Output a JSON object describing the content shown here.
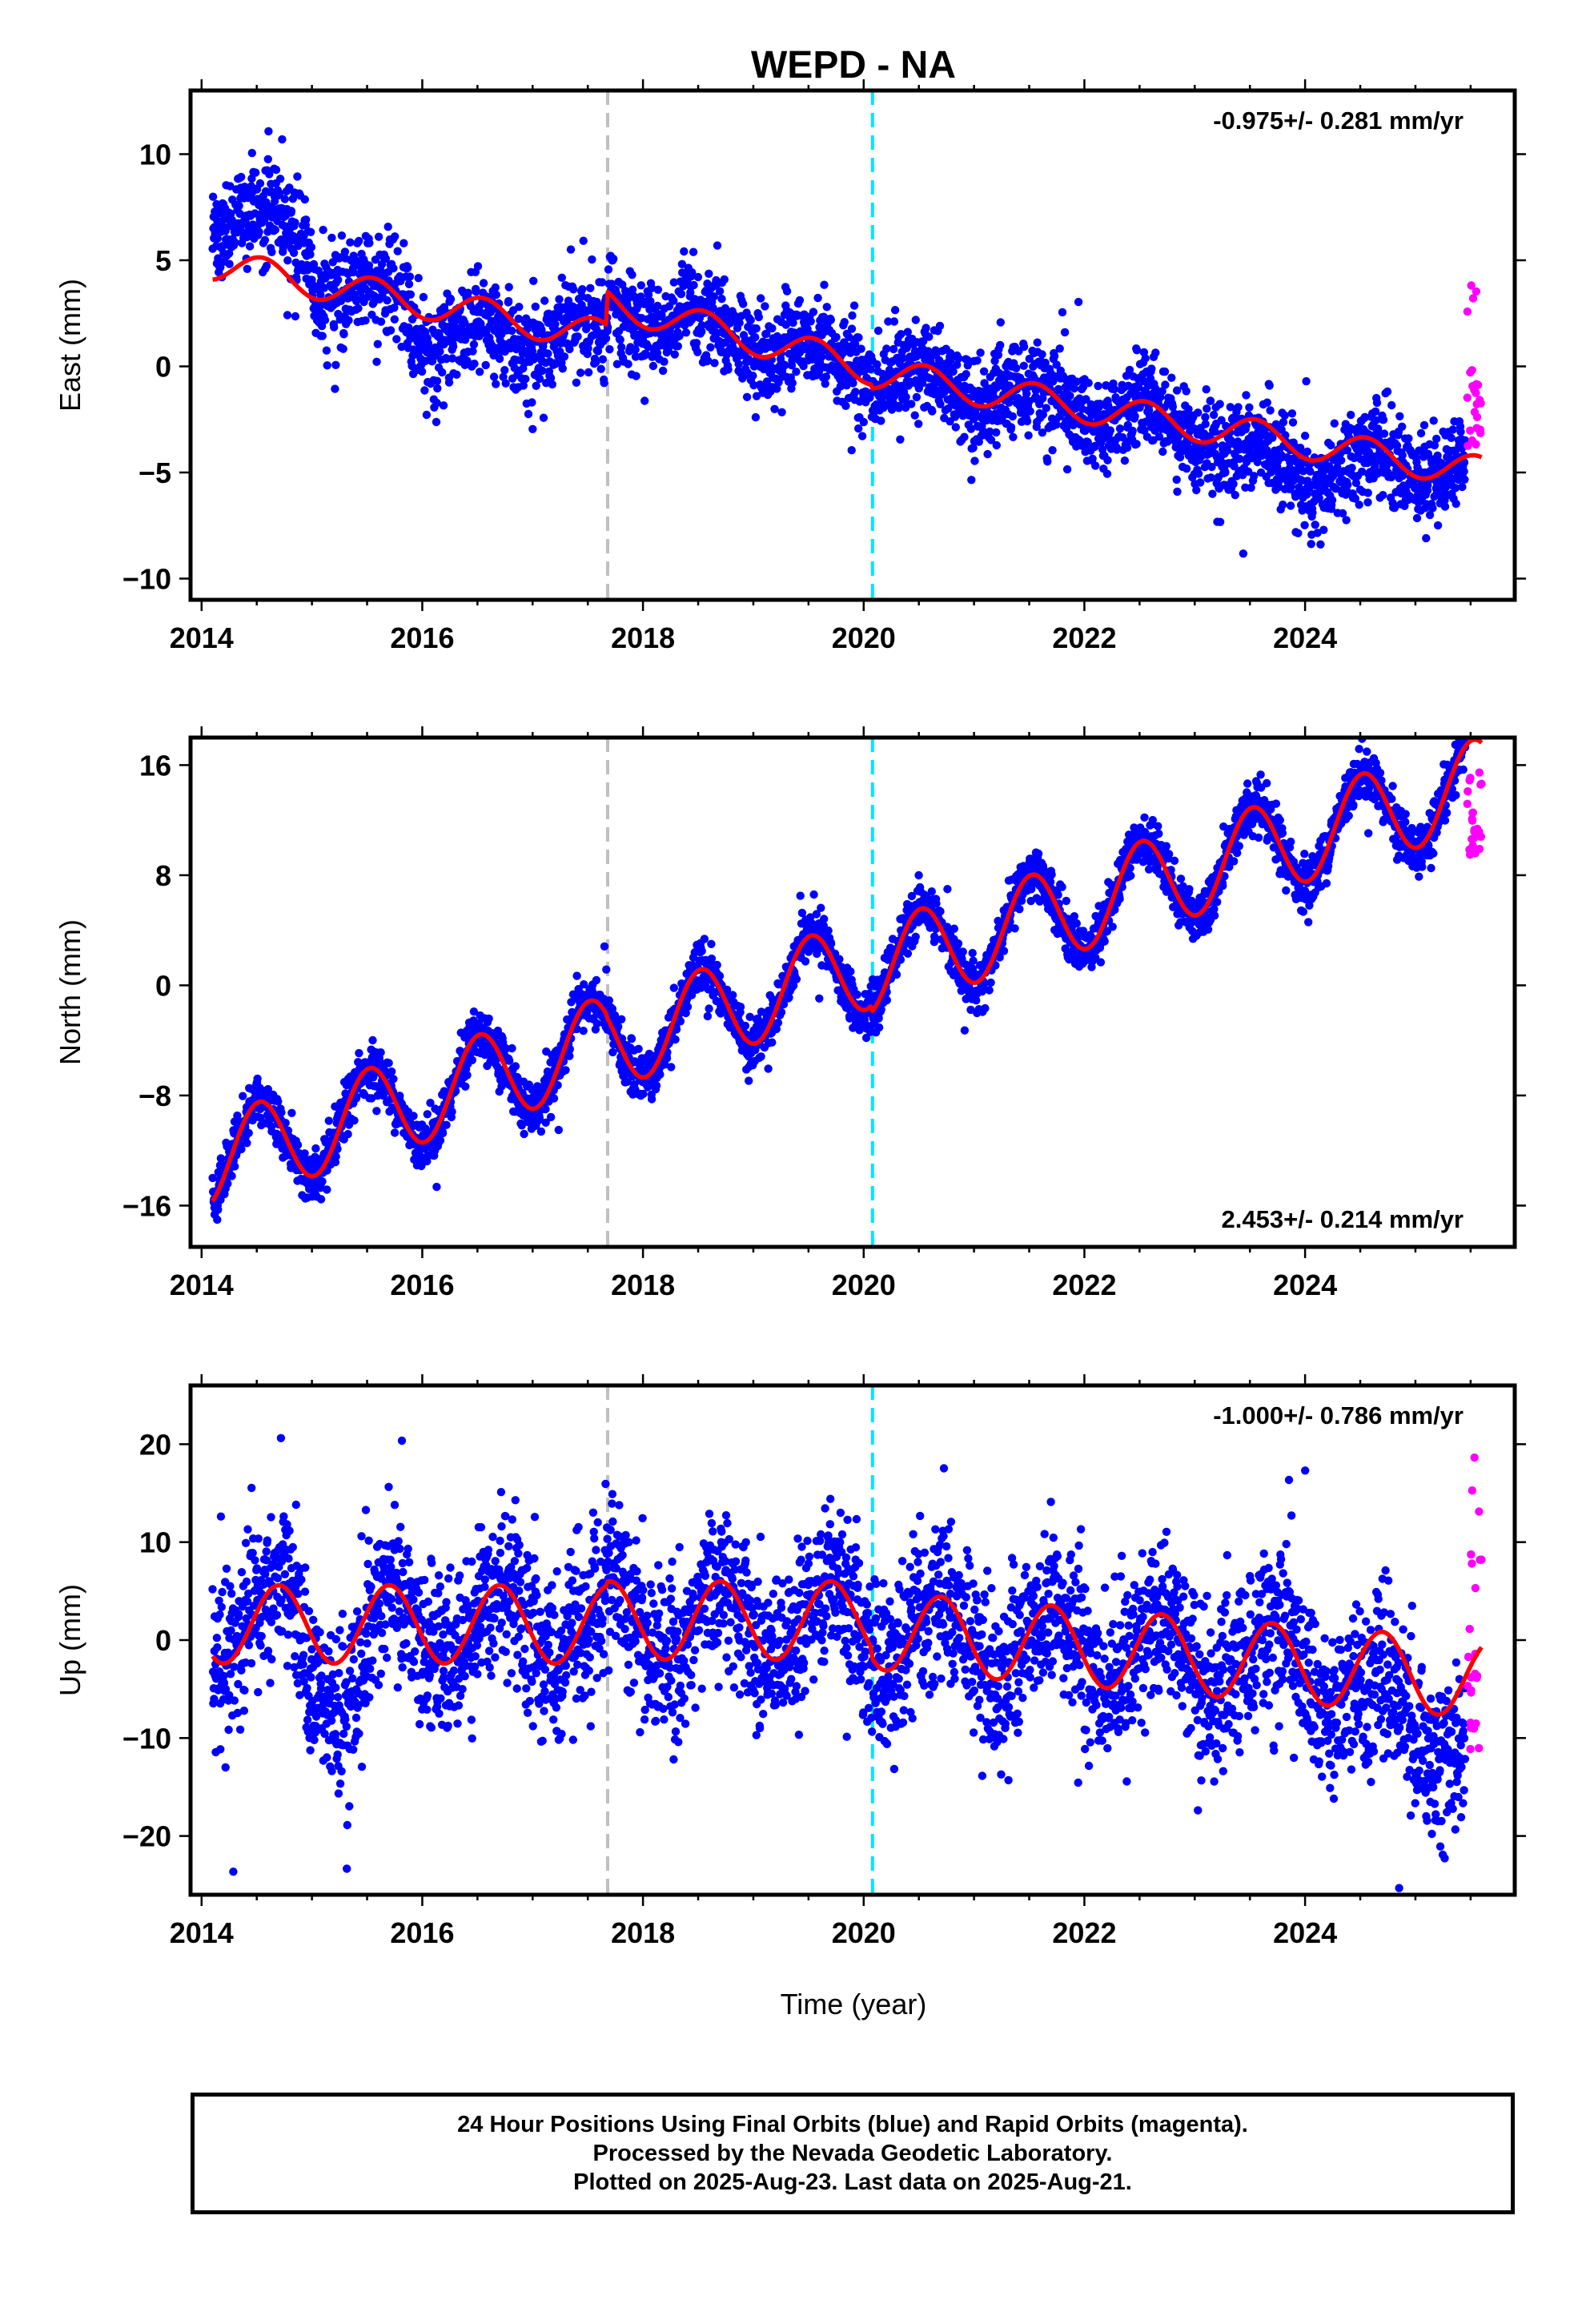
{
  "title": "WEPD - NA",
  "colors": {
    "final_orbits": "#0000ff",
    "rapid_orbits": "#ff00ff",
    "model_fit": "#ff0000",
    "event_gray": "#c0c0c0",
    "event_cyan": "#00e5ff"
  },
  "chart_data": [
    {
      "type": "scatter",
      "ylabel": "East (mm)",
      "rate_label": "-0.975+/- 0.281 mm/yr",
      "rate_position": "top-right",
      "xlim": [
        2013.9,
        2025.9
      ],
      "ylim": [
        -11,
        13
      ],
      "xticks": [
        2014,
        2016,
        2018,
        2020,
        2022,
        2024
      ],
      "xtick_labels": [
        "2014",
        "2016",
        "2018",
        "2020",
        "2022",
        "2024"
      ],
      "yticks": [
        -10,
        -5,
        0,
        5,
        10
      ],
      "ytick_labels": [
        "−10",
        "−5",
        "0",
        "5",
        "10"
      ],
      "event_lines": [
        {
          "x": 2017.68,
          "color": "gray"
        },
        {
          "x": 2020.08,
          "color": "cyan"
        }
      ],
      "model": {
        "start": 2014.1,
        "end": 2025.6,
        "segments": [
          {
            "from": 2014.1,
            "to": 2017.68,
            "level_at_start": 4.8,
            "rate": -0.95
          },
          {
            "from": 2017.68,
            "to": 2020.08,
            "level_at_start": 3.0,
            "rate": -1.3
          },
          {
            "from": 2020.08,
            "to": 2025.6,
            "level_at_start": -0.3,
            "rate": -0.85
          }
        ],
        "annual_amplitude": 0.75,
        "annual_peak": 0.55
      },
      "points_final": {
        "count": 3500,
        "start": 2014.1,
        "end": 2025.45,
        "scatter_sd": 1.1,
        "extra_offset": [
          {
            "from": 2014.1,
            "to": 2015.0,
            "add": 2.6
          },
          {
            "from": 2015.9,
            "to": 2017.0,
            "add": -1.3
          },
          {
            "from": 2023.2,
            "to": 2024.6,
            "add": -1.2
          }
        ]
      },
      "points_rapid": {
        "count": 24,
        "start": 2025.47,
        "end": 2025.6,
        "range": [
          -4.8,
          4.0
        ]
      }
    },
    {
      "type": "scatter",
      "ylabel": "North (mm)",
      "rate_label": "2.453+/- 0.214 mm/yr",
      "rate_position": "bottom-right",
      "xlim": [
        2013.9,
        2025.9
      ],
      "ylim": [
        -19,
        18
      ],
      "xticks": [
        2014,
        2016,
        2018,
        2020,
        2022,
        2024
      ],
      "xtick_labels": [
        "2014",
        "2016",
        "2018",
        "2020",
        "2022",
        "2024"
      ],
      "yticks": [
        -16,
        -8,
        0,
        8,
        16
      ],
      "ytick_labels": [
        "−16",
        "−8",
        "0",
        "8",
        "16"
      ],
      "event_lines": [
        {
          "x": 2017.68,
          "color": "gray"
        },
        {
          "x": 2020.08,
          "color": "cyan"
        }
      ],
      "model": {
        "start": 2014.1,
        "end": 2025.6,
        "segments": [
          {
            "from": 2014.1,
            "to": 2017.68,
            "level_at_start": -12.8,
            "rate": 2.45
          },
          {
            "from": 2017.68,
            "to": 2020.08,
            "level_at_start": -4.2,
            "rate": 2.45
          },
          {
            "from": 2020.08,
            "to": 2025.6,
            "level_at_start": 1.2,
            "rate": 2.45
          }
        ],
        "annual_amplitude": 3.3,
        "annual_peak": 0.52
      },
      "points_final": {
        "count": 3500,
        "start": 2014.1,
        "end": 2025.45,
        "scatter_sd": 0.9,
        "extra_offset": []
      },
      "points_rapid": {
        "count": 24,
        "start": 2025.47,
        "end": 2025.6,
        "range": [
          9.0,
          16.2
        ]
      }
    },
    {
      "type": "scatter",
      "ylabel": "Up (mm)",
      "rate_label": "-1.000+/- 0.786 mm/yr",
      "rate_position": "top-right",
      "xlabel": "Time (year)",
      "xlim": [
        2013.9,
        2025.9
      ],
      "ylim": [
        -26,
        26
      ],
      "xticks": [
        2014,
        2016,
        2018,
        2020,
        2022,
        2024
      ],
      "xtick_labels": [
        "2014",
        "2016",
        "2018",
        "2020",
        "2022",
        "2024"
      ],
      "yticks": [
        -20,
        -10,
        0,
        10,
        20
      ],
      "ytick_labels": [
        "−20",
        "−10",
        "0",
        "10",
        "20"
      ],
      "event_lines": [
        {
          "x": 2017.68,
          "color": "gray"
        },
        {
          "x": 2020.08,
          "color": "cyan"
        }
      ],
      "model": {
        "start": 2014.1,
        "end": 2025.6,
        "segments": [
          {
            "from": 2014.1,
            "to": 2017.68,
            "level_at_start": 1.6,
            "rate": 0.0
          },
          {
            "from": 2017.68,
            "to": 2020.08,
            "level_at_start": 2.0,
            "rate": 0.0
          },
          {
            "from": 2020.08,
            "to": 2025.6,
            "level_at_start": 1.0,
            "rate": -0.9
          }
        ],
        "annual_amplitude": 4.0,
        "annual_peak": 0.7
      },
      "points_final": {
        "count": 3500,
        "start": 2014.1,
        "end": 2025.45,
        "scatter_sd": 4.2,
        "extra_offset": [
          {
            "from": 2014.9,
            "to": 2015.5,
            "add": -6.0
          },
          {
            "from": 2024.5,
            "to": 2025.45,
            "add": -6.0
          }
        ]
      },
      "points_rapid": {
        "count": 24,
        "start": 2025.47,
        "end": 2025.6,
        "range": [
          -15.0,
          19.0
        ]
      }
    }
  ],
  "caption": {
    "line1": "24 Hour Positions Using Final Orbits (blue) and Rapid Orbits (magenta).",
    "line2": "Processed by the Nevada Geodetic Laboratory.",
    "line3": "Plotted on 2025-Aug-23. Last data on 2025-Aug-21."
  }
}
